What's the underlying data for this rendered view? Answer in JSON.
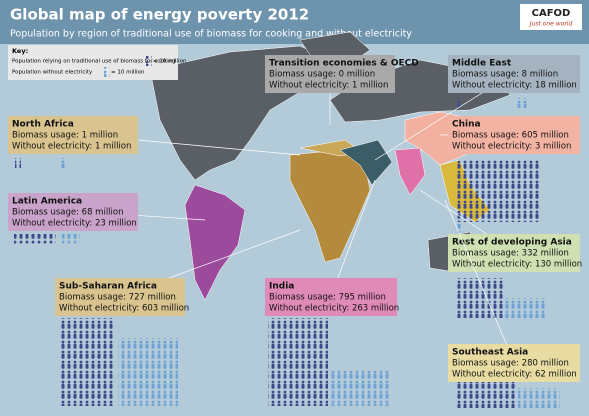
{
  "header": {
    "title": "Global map of energy poverty 2012",
    "subtitle": "Population by region of traditional use of biomass for cooking and without electricity"
  },
  "logo": {
    "name": "CAFOD",
    "tagline": "Just one world"
  },
  "key": {
    "title": "Key:",
    "biomass": "Population relying on traditional use of biomass for cooking",
    "biomass_scale": "= 10 million",
    "electricity": "Population without electricity",
    "electricity_scale": "= 10 million"
  },
  "regions": [
    {
      "name": "Transition economies & OECD",
      "biomass": "Biomass usage: 0 million",
      "electricity": "Without electricity: 1 million"
    },
    {
      "name": "Middle East",
      "biomass": "Biomass usage: 8 million",
      "electricity": "Without electricity: 18 million"
    },
    {
      "name": "North Africa",
      "biomass": "Biomass usage: 1 million",
      "electricity": "Without electricity: 1 million"
    },
    {
      "name": "China",
      "biomass": "Biomass usage: 605 million",
      "electricity": "Without electricity: 3 million"
    },
    {
      "name": "Latin America",
      "biomass": "Biomass usage: 68 million",
      "electricity": "Without electricity: 23 million"
    },
    {
      "name": "Rest of developing Asia",
      "biomass": "Biomass usage: 332 million",
      "electricity": "Without electricity: 130 million"
    },
    {
      "name": "Sub-Saharan Africa",
      "biomass": "Biomass usage: 727 million",
      "electricity": "Without electricity: 603 million"
    },
    {
      "name": "India",
      "biomass": "Biomass usage: 795 million",
      "electricity": "Without electricity: 263 million"
    },
    {
      "name": "Southeast Asia",
      "biomass": "Biomass usage: 280 million",
      "electricity": "Without electricity: 62 million"
    }
  ]
}
